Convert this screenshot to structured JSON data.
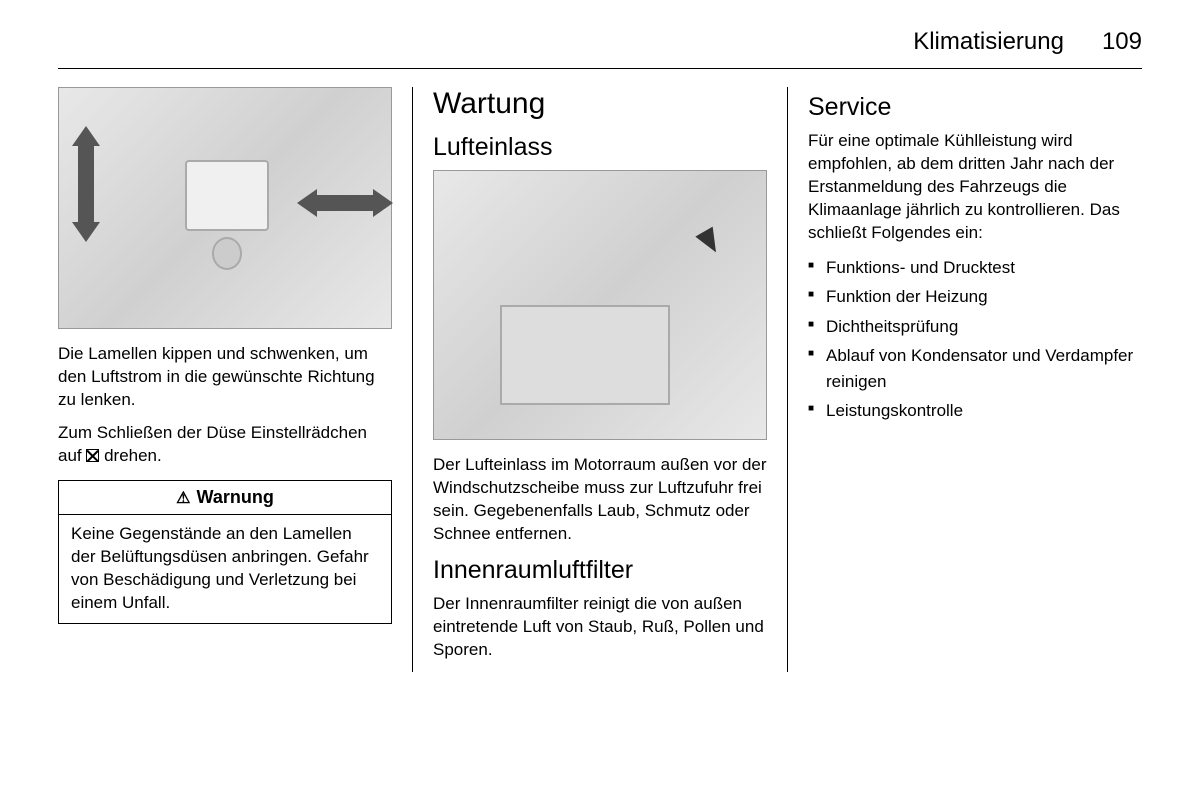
{
  "header": {
    "title": "Klimatisierung",
    "page": "109"
  },
  "col1": {
    "para1": "Die Lamellen kippen und schwenken, um den Luftstrom in die gewünschte Richtung zu lenken.",
    "para2a": "Zum Schließen der Düse Einstellräd­chen auf ",
    "para2b": " drehen.",
    "warning_title": "Warnung",
    "warning_body": "Keine Gegenstände an den La­mellen der Belüftungsdüsen an­bringen. Gefahr von Beschädi­gung und Verletzung bei einem Unfall."
  },
  "col2": {
    "h1": "Wartung",
    "h2a": "Lufteinlass",
    "para1": "Der Lufteinlass im Motorraum außen vor der Windschutzscheibe muss zur Luftzufuhr frei sein. Gegebenenfalls Laub, Schmutz oder Schnee entfer­nen.",
    "h2b": "Innenraumluftfilter",
    "para2": "Der Innenraumfilter reinigt die von au­ßen eintretende Luft von Staub, Ruß, Pollen und Sporen."
  },
  "col3": {
    "h2": "Service",
    "intro": "Für eine optimale Kühlleistung wird empfohlen, ab dem dritten Jahr nach der Erstanmeldung des Fahrzeugs die Klimaanlage jährlich zu kontrollie­ren. Das schließt Folgendes ein:",
    "items": [
      "Funktions- und Drucktest",
      "Funktion der Heizung",
      "Dichtheitsprüfung",
      "Ablauf von Kondensator und Ver­dampfer reinigen",
      "Leistungskontrolle"
    ]
  }
}
